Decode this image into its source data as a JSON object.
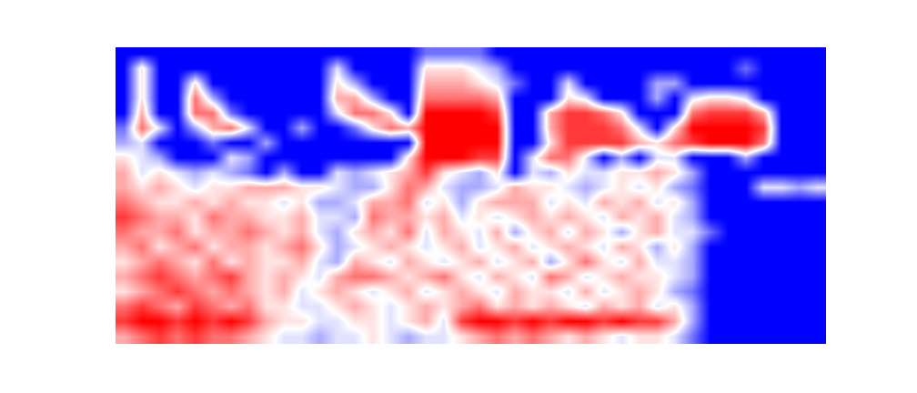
{
  "chart_data": {
    "type": "heatmap",
    "tick_labels": false,
    "value_range": [
      0,
      9
    ],
    "cells": [
      [
        0,
        0,
        0,
        0,
        0,
        0,
        0,
        0,
        0,
        0,
        0,
        0,
        0,
        0,
        0,
        0,
        0,
        2,
        2,
        2,
        2,
        0,
        0,
        0,
        0,
        0,
        0,
        0,
        0,
        0,
        0,
        0,
        0,
        0,
        0,
        0,
        0,
        0,
        0,
        0
      ],
      [
        0,
        5,
        0,
        0,
        0,
        0,
        0,
        0,
        0,
        0,
        0,
        0,
        4,
        0,
        0,
        0,
        0,
        5,
        5,
        5,
        4,
        3,
        0,
        0,
        0,
        0,
        0,
        0,
        0,
        0,
        0,
        0,
        0,
        0,
        0,
        2,
        0,
        0,
        0,
        0
      ],
      [
        0,
        5,
        0,
        0,
        5,
        0,
        0,
        0,
        0,
        0,
        0,
        0,
        5,
        3,
        0,
        0,
        0,
        6,
        6,
        6,
        5,
        4,
        2,
        0,
        0,
        4,
        0,
        0,
        0,
        0,
        3,
        3,
        0,
        0,
        0,
        0,
        0,
        0,
        0,
        0
      ],
      [
        0,
        5,
        0,
        0,
        7,
        3,
        0,
        0,
        0,
        0,
        0,
        0,
        6,
        6,
        3,
        0,
        0,
        7,
        7,
        7,
        7,
        6,
        0,
        0,
        0,
        5,
        4,
        0,
        0,
        0,
        3,
        0,
        4,
        5,
        5,
        4,
        0,
        0,
        0,
        0
      ],
      [
        0,
        6,
        0,
        0,
        7,
        7,
        2,
        0,
        0,
        0,
        0,
        0,
        4,
        7,
        7,
        5,
        0,
        9,
        9,
        9,
        9,
        8,
        0,
        0,
        6,
        8,
        8,
        7,
        5,
        0,
        0,
        0,
        7,
        8,
        8,
        8,
        6,
        0,
        0,
        0
      ],
      [
        2,
        7,
        4,
        0,
        3,
        6,
        7,
        4,
        0,
        0,
        3,
        0,
        0,
        2,
        5,
        7,
        6,
        9,
        9,
        9,
        9,
        9,
        0,
        0,
        6,
        8,
        8,
        8,
        7,
        4,
        0,
        5,
        9,
        9,
        9,
        9,
        8,
        0,
        0,
        0
      ],
      [
        3,
        4,
        0,
        0,
        0,
        2,
        0,
        0,
        3,
        0,
        0,
        0,
        0,
        0,
        0,
        0,
        0,
        9,
        9,
        9,
        9,
        9,
        0,
        0,
        5,
        8,
        8,
        8,
        8,
        6,
        5,
        7,
        8,
        9,
        9,
        9,
        7,
        0,
        0,
        0
      ],
      [
        5,
        4,
        3,
        0,
        0,
        0,
        4,
        3,
        0,
        0,
        0,
        0,
        0,
        0,
        0,
        0,
        5,
        9,
        9,
        9,
        8,
        8,
        0,
        4,
        7,
        7,
        4,
        0,
        3,
        0,
        4,
        4,
        0,
        0,
        0,
        3,
        0,
        0,
        0,
        0
      ],
      [
        6,
        4,
        5,
        4,
        3,
        4,
        3,
        2,
        0,
        3,
        0,
        0,
        4,
        3,
        4,
        5,
        6,
        8,
        5,
        4,
        3,
        5,
        0,
        4,
        3,
        5,
        4,
        4,
        5,
        5,
        6,
        5,
        3,
        0,
        0,
        0,
        0,
        0,
        0,
        0
      ],
      [
        6,
        5,
        6,
        5,
        4,
        5,
        5,
        6,
        6,
        6,
        5,
        5,
        4,
        3,
        3,
        5,
        7,
        6,
        4,
        3,
        3,
        4,
        6,
        5,
        5,
        4,
        3,
        4,
        5,
        4,
        5,
        3,
        2,
        0,
        0,
        0,
        4,
        4,
        3,
        4
      ],
      [
        7,
        6,
        5,
        5,
        6,
        5,
        6,
        5,
        5,
        4,
        5,
        3,
        3,
        4,
        6,
        6,
        7,
        4,
        5,
        3,
        5,
        6,
        6,
        6,
        4,
        5,
        4,
        6,
        5,
        6,
        4,
        5,
        3,
        0,
        0,
        0,
        0,
        0,
        0,
        0
      ],
      [
        8,
        7,
        6,
        6,
        5,
        7,
        6,
        6,
        5,
        5,
        6,
        4,
        4,
        3,
        7,
        6,
        6,
        5,
        6,
        4,
        5,
        4,
        5,
        6,
        5,
        6,
        5,
        4,
        6,
        5,
        6,
        4,
        3,
        0,
        0,
        0,
        0,
        0,
        0,
        0
      ],
      [
        7,
        6,
        6,
        7,
        5,
        6,
        6,
        7,
        6,
        5,
        6,
        4,
        3,
        5,
        6,
        5,
        7,
        4,
        6,
        5,
        4,
        6,
        3,
        5,
        6,
        4,
        6,
        5,
        3,
        5,
        6,
        4,
        4,
        2,
        0,
        0,
        0,
        0,
        0,
        0
      ],
      [
        6,
        7,
        5,
        6,
        7,
        5,
        6,
        6,
        5,
        6,
        7,
        5,
        3,
        4,
        5,
        6,
        5,
        4,
        5,
        6,
        4,
        5,
        6,
        4,
        5,
        6,
        5,
        4,
        6,
        5,
        3,
        5,
        3,
        0,
        0,
        0,
        0,
        0,
        0,
        0
      ],
      [
        5,
        6,
        7,
        6,
        5,
        7,
        5,
        6,
        5,
        5,
        6,
        4,
        3,
        6,
        5,
        4,
        6,
        5,
        4,
        5,
        6,
        4,
        5,
        6,
        3,
        5,
        7,
        5,
        4,
        6,
        4,
        4,
        3,
        0,
        0,
        0,
        0,
        0,
        0,
        0
      ],
      [
        6,
        7,
        8,
        7,
        6,
        7,
        8,
        6,
        5,
        6,
        5,
        4,
        6,
        7,
        7,
        6,
        5,
        6,
        7,
        5,
        4,
        6,
        5,
        4,
        7,
        6,
        4,
        5,
        6,
        5,
        5,
        4,
        3,
        0,
        0,
        0,
        0,
        0,
        0,
        0
      ],
      [
        5,
        6,
        7,
        8,
        7,
        6,
        7,
        6,
        5,
        6,
        4,
        5,
        6,
        5,
        4,
        5,
        6,
        4,
        5,
        6,
        5,
        4,
        6,
        5,
        5,
        4,
        6,
        4,
        5,
        6,
        5,
        3,
        2,
        0,
        0,
        0,
        0,
        0,
        0,
        0
      ],
      [
        7,
        8,
        7,
        6,
        8,
        7,
        6,
        7,
        5,
        5,
        4,
        4,
        5,
        6,
        5,
        4,
        5,
        6,
        5,
        6,
        7,
        5,
        6,
        5,
        6,
        5,
        4,
        6,
        5,
        6,
        4,
        5,
        3,
        0,
        0,
        0,
        0,
        0,
        0,
        0
      ],
      [
        8,
        9,
        9,
        8,
        9,
        8,
        9,
        8,
        6,
        5,
        5,
        4,
        4,
        5,
        5,
        4,
        5,
        6,
        4,
        8,
        9,
        9,
        8,
        9,
        8,
        9,
        9,
        8,
        9,
        8,
        8,
        6,
        3,
        0,
        0,
        0,
        0,
        0,
        0,
        0
      ],
      [
        6,
        7,
        8,
        7,
        8,
        7,
        7,
        6,
        5,
        4,
        4,
        3,
        4,
        4,
        5,
        4,
        3,
        4,
        4,
        5,
        6,
        7,
        6,
        7,
        6,
        5,
        6,
        5,
        4,
        5,
        5,
        4,
        2,
        0,
        0,
        0,
        0,
        0,
        0,
        0
      ]
    ]
  }
}
